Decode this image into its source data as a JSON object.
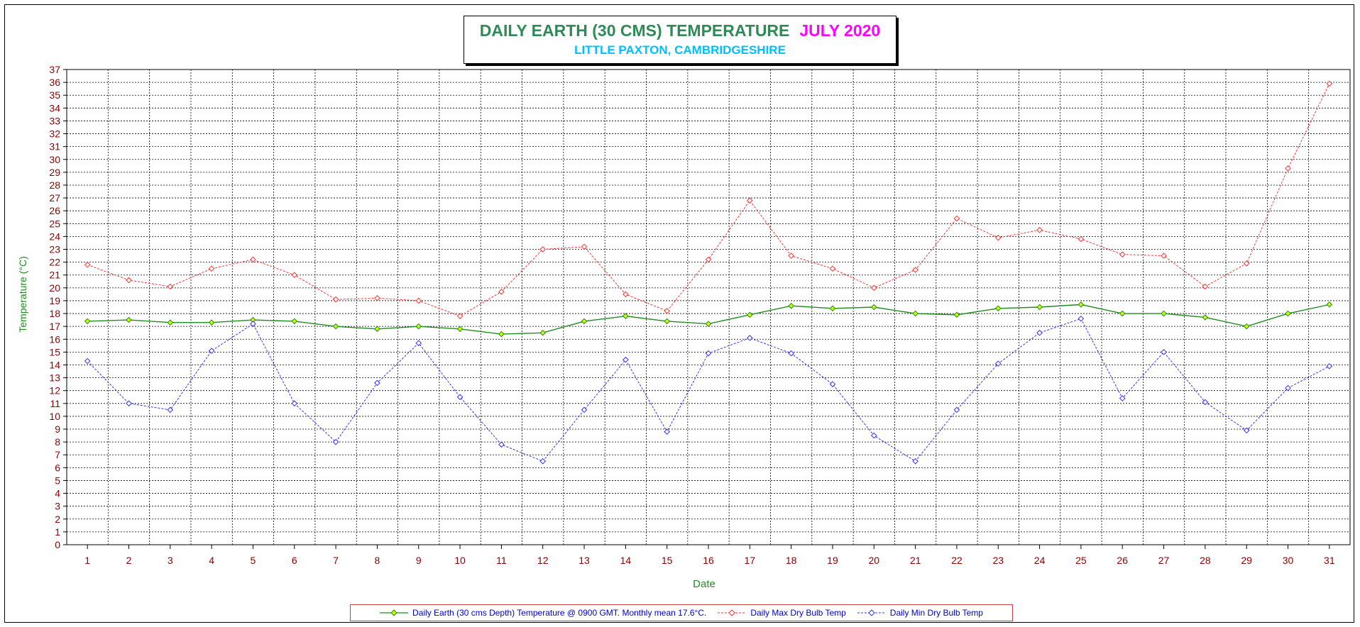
{
  "title": {
    "main": "DAILY EARTH (30 CMS) TEMPERATURE",
    "month": "JULY 2020",
    "subtitle": "LITTLE PAXTON, CAMBRIDGESHIRE"
  },
  "colors": {
    "title": "#2e8b57",
    "month": "#ff00ff",
    "subtitle": "#00bfff",
    "axis_label": "#228b22",
    "tick_label": "#8b0000",
    "earth": "#228b22",
    "earth_marker": "#ccff00",
    "max": "#ff3333",
    "min": "#3333ff"
  },
  "chart_data": {
    "type": "line",
    "xlabel": "Date",
    "ylabel": "Temperature (°C)",
    "ylim": [
      0,
      37
    ],
    "y_ticks": [
      0,
      1,
      2,
      3,
      4,
      5,
      6,
      7,
      8,
      9,
      10,
      11,
      12,
      13,
      14,
      15,
      16,
      17,
      18,
      19,
      20,
      21,
      22,
      23,
      24,
      25,
      26,
      27,
      28,
      29,
      30,
      31,
      32,
      33,
      34,
      35,
      36,
      37
    ],
    "x": [
      1,
      2,
      3,
      4,
      5,
      6,
      7,
      8,
      9,
      10,
      11,
      12,
      13,
      14,
      15,
      16,
      17,
      18,
      19,
      20,
      21,
      22,
      23,
      24,
      25,
      26,
      27,
      28,
      29,
      30,
      31
    ],
    "grid": true,
    "legend_position": "bottom",
    "series": [
      {
        "name": "Daily Earth (30 cms Depth) Temperature @ 0900 GMT. Monthly mean 17.6°C.",
        "style": "solid",
        "values": [
          17.4,
          17.5,
          17.3,
          17.3,
          17.5,
          17.4,
          17.0,
          16.8,
          17.0,
          16.8,
          16.4,
          16.5,
          17.4,
          17.8,
          17.4,
          17.2,
          17.9,
          18.6,
          18.4,
          18.5,
          18.0,
          17.9,
          18.4,
          18.5,
          18.7,
          18.0,
          18.0,
          17.7,
          17.0,
          18.0,
          18.7
        ]
      },
      {
        "name": "Daily Max Dry Bulb Temp",
        "style": "dashed",
        "values": [
          21.8,
          20.6,
          20.1,
          21.5,
          22.2,
          21.0,
          19.1,
          19.2,
          19.0,
          17.8,
          19.7,
          23.0,
          23.2,
          19.5,
          18.2,
          22.2,
          26.8,
          22.5,
          21.5,
          20.0,
          21.4,
          25.4,
          23.9,
          24.5,
          23.8,
          22.6,
          22.5,
          20.1,
          21.9,
          29.3,
          35.9
        ]
      },
      {
        "name": "Daily Min Dry Bulb Temp",
        "style": "dashed",
        "values": [
          14.3,
          11.0,
          10.5,
          15.1,
          17.2,
          11.0,
          8.0,
          12.6,
          15.7,
          11.5,
          7.8,
          6.5,
          10.5,
          14.4,
          8.8,
          14.9,
          16.1,
          14.9,
          12.5,
          8.5,
          6.5,
          10.5,
          14.1,
          16.5,
          17.6,
          11.4,
          15.0,
          11.1,
          8.9,
          12.2,
          13.9
        ]
      }
    ]
  }
}
